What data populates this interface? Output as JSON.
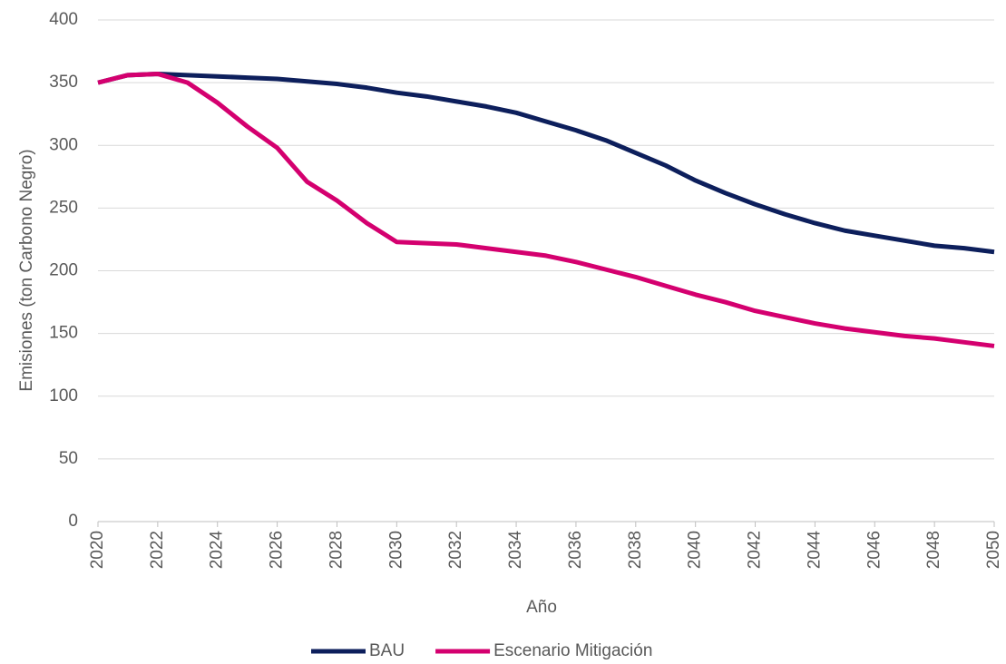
{
  "chart_data": {
    "type": "line",
    "x_label": "Año",
    "y_label": "Emisiones (ton Carbono Negro)",
    "x": [
      2020,
      2021,
      2022,
      2023,
      2024,
      2025,
      2026,
      2027,
      2028,
      2029,
      2030,
      2031,
      2032,
      2033,
      2034,
      2035,
      2036,
      2037,
      2038,
      2039,
      2040,
      2041,
      2042,
      2043,
      2044,
      2045,
      2046,
      2047,
      2048,
      2049,
      2050
    ],
    "series": [
      {
        "name": "BAU",
        "color": "#0d1f5c",
        "values": [
          350,
          356,
          357,
          356,
          355,
          354,
          353,
          351,
          349,
          346,
          342,
          339,
          335,
          331,
          326,
          319,
          312,
          304,
          294,
          284,
          272,
          262,
          253,
          245,
          238,
          232,
          228,
          224,
          220,
          218,
          215
        ]
      },
      {
        "name": "Escenario Mitigación",
        "color": "#d4006f",
        "values": [
          350,
          356,
          357,
          350,
          334,
          315,
          298,
          271,
          256,
          238,
          223,
          222,
          221,
          218,
          215,
          212,
          207,
          201,
          195,
          188,
          181,
          175,
          168,
          163,
          158,
          154,
          151,
          148,
          146,
          143,
          140
        ]
      }
    ],
    "xlim": [
      2020,
      2050
    ],
    "xticks": [
      2020,
      2022,
      2024,
      2026,
      2028,
      2030,
      2032,
      2034,
      2036,
      2038,
      2040,
      2042,
      2044,
      2046,
      2048,
      2050
    ],
    "ylim": [
      0,
      400
    ],
    "yticks": [
      0,
      50,
      100,
      150,
      200,
      250,
      300,
      350,
      400
    ],
    "grid": true,
    "legend": "bottom"
  }
}
